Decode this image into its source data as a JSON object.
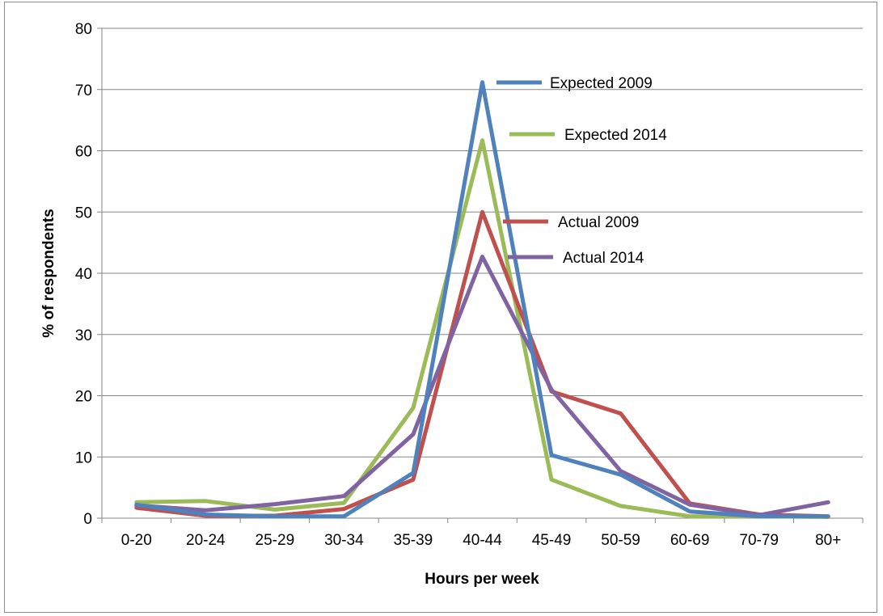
{
  "chart_data": {
    "type": "line",
    "title": "",
    "xlabel": "Hours per week",
    "ylabel": "% of respondents",
    "ylim": [
      0,
      80
    ],
    "yticks": [
      0,
      10,
      20,
      30,
      40,
      50,
      60,
      70,
      80
    ],
    "grid": "horizontal",
    "legend": "inline labels near peak",
    "categories": [
      "0-20",
      "20-24",
      "25-29",
      "30-34",
      "35-39",
      "40-44",
      "45-49",
      "50-59",
      "60-69",
      "70-79",
      "80+"
    ],
    "series": [
      {
        "name": "Expected 2009",
        "color": "#4F81BD",
        "values": [
          2.2,
          0.6,
          0.3,
          0.3,
          7.4,
          71.2,
          10.3,
          7.1,
          1.1,
          0.3,
          0.3
        ]
      },
      {
        "name": "Expected 2014",
        "color": "#9BBB59",
        "values": [
          2.6,
          2.8,
          1.4,
          2.5,
          18.0,
          61.7,
          6.3,
          2.0,
          0.3,
          0.3,
          0.2
        ]
      },
      {
        "name": "Actual 2009",
        "color": "#C0504D",
        "values": [
          1.7,
          0.4,
          0.4,
          1.5,
          6.3,
          50.0,
          20.7,
          17.1,
          2.4,
          0.6,
          0.3
        ]
      },
      {
        "name": "Actual 2014",
        "color": "#8064A2",
        "values": [
          2.1,
          1.3,
          2.3,
          3.6,
          13.7,
          42.7,
          21.0,
          7.7,
          2.2,
          0.5,
          2.6
        ]
      }
    ]
  }
}
